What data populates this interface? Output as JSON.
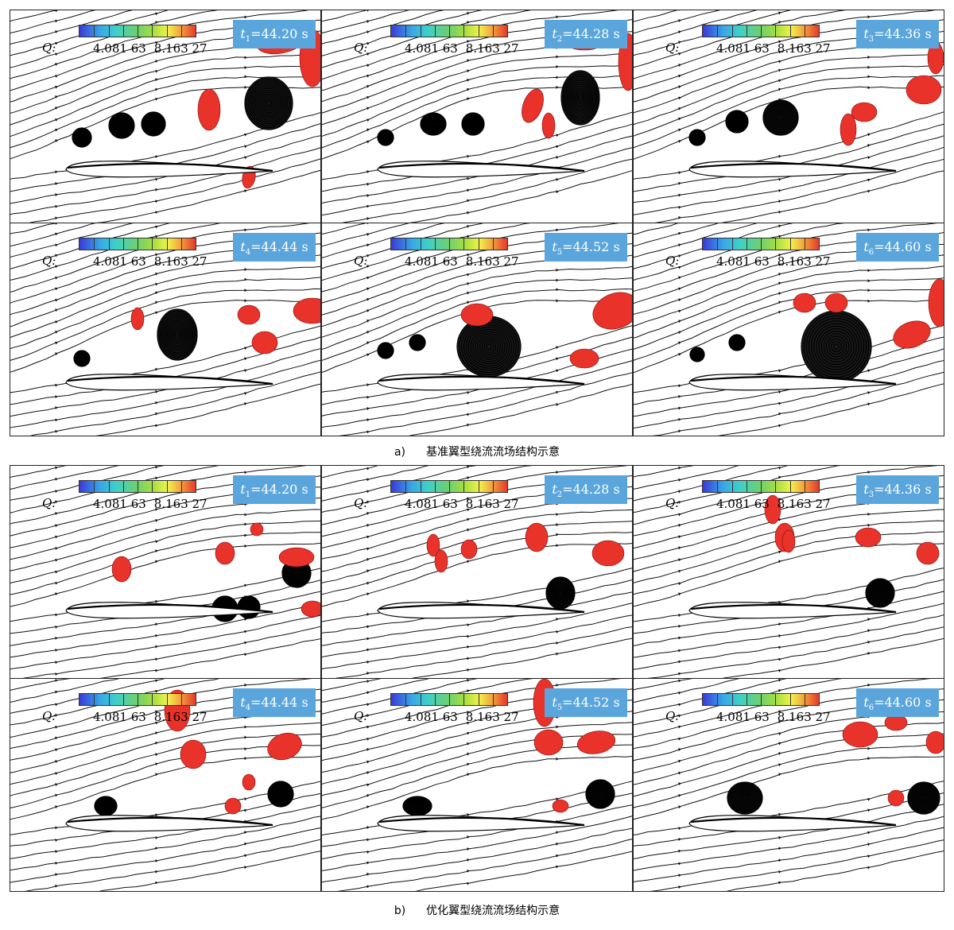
{
  "colorbar": {
    "quantity_label": "Q:",
    "tick_low": "4.081 63",
    "tick_high": "8.163 27",
    "colors": [
      "#3a3ad8",
      "#38a8e8",
      "#3fd0c8",
      "#6fd06a",
      "#a8e040",
      "#f2f24a",
      "#f59a3a",
      "#e43a2a"
    ]
  },
  "vortex_color": "#e8322a",
  "streamline_color": "#111111",
  "groups": [
    {
      "caption_label": "a)",
      "caption_text": "基准翼型绕流流场结构示意",
      "variant": "baseline",
      "panels": [
        {
          "t_sub": "1",
          "t_value": "=44.20 s"
        },
        {
          "t_sub": "2",
          "t_value": "=44.28 s"
        },
        {
          "t_sub": "3",
          "t_value": "=44.36 s"
        },
        {
          "t_sub": "4",
          "t_value": "=44.44 s"
        },
        {
          "t_sub": "5",
          "t_value": "=44.52 s"
        },
        {
          "t_sub": "6",
          "t_value": "=44.60 s"
        }
      ]
    },
    {
      "caption_label": "b)",
      "caption_text": "优化翼型绕流流场结构示意",
      "variant": "optimized",
      "panels": [
        {
          "t_sub": "1",
          "t_value": "=44.20 s"
        },
        {
          "t_sub": "2",
          "t_value": "=44.28 s"
        },
        {
          "t_sub": "3",
          "t_value": "=44.36 s"
        },
        {
          "t_sub": "4",
          "t_value": "=44.44 s"
        },
        {
          "t_sub": "5",
          "t_value": "=44.52 s"
        },
        {
          "t_sub": "6",
          "t_value": "=44.60 s"
        }
      ]
    }
  ]
}
